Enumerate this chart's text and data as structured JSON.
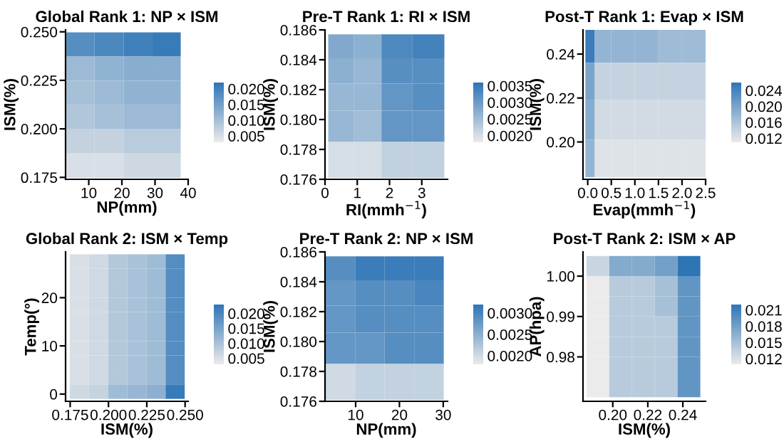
{
  "chart_data": [
    {
      "type": "heatmap",
      "title": "Global Rank 1: NP × ISM",
      "xlabel": "NP(mm)",
      "ylabel": "ISM(%)",
      "colors": [
        "#ebebeb",
        "#2e75b6"
      ],
      "x": [
        7.5,
        16,
        25,
        33.5
      ],
      "y": [
        0.2435,
        0.231,
        0.2185,
        0.206,
        0.1935,
        0.181
      ],
      "cells": [
        [
          0.018,
          0.019,
          0.02,
          0.021
        ],
        [
          0.011,
          0.012,
          0.013,
          0.013
        ],
        [
          0.01,
          0.011,
          0.012,
          0.012
        ],
        [
          0.009,
          0.01,
          0.011,
          0.011
        ],
        [
          0.007,
          0.007,
          0.008,
          0.008
        ],
        [
          0.005,
          0.005,
          0.006,
          0.006
        ]
      ],
      "xlim": [
        3,
        40
      ],
      "xticks": [
        10,
        20,
        30,
        40
      ],
      "ylim": [
        0.174,
        0.251
      ],
      "yticks": [
        {
          "value": 0.175,
          "label": "0.175"
        },
        {
          "value": 0.2,
          "label": "0.200"
        },
        {
          "value": 0.225,
          "label": "0.225"
        },
        {
          "value": 0.25,
          "label": "0.250"
        }
      ],
      "clim": [
        0.003,
        0.022
      ],
      "cticks": [
        {
          "value": 0.005,
          "label": "0.005"
        },
        {
          "value": 0.01,
          "label": "0.010"
        },
        {
          "value": 0.015,
          "label": "0.015"
        },
        {
          "value": 0.02,
          "label": "0.020"
        }
      ]
    },
    {
      "type": "heatmap",
      "title": "Pre-T Rank 1: RI × ISM",
      "xlabel": "RI(mmh$^{−1}$)",
      "ylabel": "ISM(%)",
      "colors": [
        "#ebebeb",
        "#2e75b6"
      ],
      "x": [
        0.5,
        1.3,
        2.2,
        3.2
      ],
      "y": [
        0.1849,
        0.1833,
        0.1815,
        0.1797,
        0.1773
      ],
      "cells": [
        [
          0.0028,
          0.0027,
          0.0033,
          0.0034
        ],
        [
          0.0027,
          0.0026,
          0.0032,
          0.0032
        ],
        [
          0.0026,
          0.0026,
          0.0031,
          0.0032
        ],
        [
          0.0026,
          0.0025,
          0.0031,
          0.0031
        ],
        [
          0.002,
          0.002,
          0.0022,
          0.0022
        ]
      ],
      "xlim": [
        0,
        3.8
      ],
      "xticks": [
        0,
        1,
        2,
        3
      ],
      "ylim": [
        0.176,
        0.186
      ],
      "yticks": [
        {
          "value": 0.176,
          "label": "0.176"
        },
        {
          "value": 0.178,
          "label": "0.178"
        },
        {
          "value": 0.18,
          "label": "0.180"
        },
        {
          "value": 0.182,
          "label": "0.182"
        },
        {
          "value": 0.184,
          "label": "0.184"
        },
        {
          "value": 0.186,
          "label": "0.186"
        }
      ],
      "clim": [
        0.0018,
        0.0036
      ],
      "cticks": [
        {
          "value": 0.002,
          "label": "0.0020"
        },
        {
          "value": 0.0025,
          "label": "0.0025"
        },
        {
          "value": 0.003,
          "label": "0.0030"
        },
        {
          "value": 0.0035,
          "label": "0.0035"
        }
      ]
    },
    {
      "type": "heatmap",
      "title": "Post-T Rank 1: Evap × ISM",
      "xlabel": "Evap(mmh$^{−1}$)",
      "ylabel": "ISM(%)",
      "colors": [
        "#ebebeb",
        "#2e75b6"
      ],
      "x": [
        0.05,
        0.25,
        0.75,
        1.25,
        1.75,
        2.25
      ],
      "y": [
        0.2435,
        0.2285,
        0.2095,
        0.1925
      ],
      "cells": [
        [
          0.025,
          0.018,
          0.018,
          0.018,
          0.017,
          0.017
        ],
        [
          0.02,
          0.014,
          0.014,
          0.014,
          0.014,
          0.014
        ],
        [
          0.019,
          0.013,
          0.013,
          0.013,
          0.013,
          0.013
        ],
        [
          0.018,
          0.012,
          0.012,
          0.012,
          0.012,
          0.012
        ]
      ],
      "xlim": [
        -0.1,
        2.5
      ],
      "xticks": [
        {
          "value": 0,
          "label": "0.0"
        },
        0.5,
        {
          "value": 1,
          "label": "1.0"
        },
        1.5,
        {
          "value": 2,
          "label": "2.0"
        },
        2.5
      ],
      "ylim": [
        0.183,
        0.251
      ],
      "yticks": [
        {
          "value": 0.2,
          "label": "0.20"
        },
        0.22,
        0.24
      ],
      "clim": [
        0.011,
        0.026
      ],
      "cticks": [
        0.012,
        0.016,
        {
          "value": 0.02,
          "label": "0.020"
        },
        0.024
      ]
    },
    {
      "type": "heatmap",
      "title": "Global Rank 2: ISM × Temp",
      "xlabel": "ISM(%)",
      "ylabel": "Temp(°)",
      "colors": [
        "#ebebeb",
        "#2e75b6"
      ],
      "x": [
        0.181,
        0.1935,
        0.206,
        0.2185,
        0.231,
        0.2435
      ],
      "y": [
        27.5,
        24.5,
        21.5,
        18.5,
        15.5,
        12.5,
        9.5,
        6.5,
        3.5,
        0.5
      ],
      "cells": [
        [
          0.005,
          0.006,
          0.009,
          0.01,
          0.011,
          0.019
        ],
        [
          0.005,
          0.006,
          0.009,
          0.01,
          0.011,
          0.019
        ],
        [
          0.005,
          0.006,
          0.009,
          0.01,
          0.011,
          0.019
        ],
        [
          0.005,
          0.006,
          0.009,
          0.01,
          0.011,
          0.019
        ],
        [
          0.005,
          0.006,
          0.009,
          0.01,
          0.011,
          0.019
        ],
        [
          0.005,
          0.006,
          0.009,
          0.01,
          0.011,
          0.019
        ],
        [
          0.005,
          0.006,
          0.009,
          0.01,
          0.011,
          0.019
        ],
        [
          0.005,
          0.006,
          0.009,
          0.01,
          0.011,
          0.019
        ],
        [
          0.005,
          0.006,
          0.009,
          0.01,
          0.011,
          0.019
        ],
        [
          0.006,
          0.007,
          0.011,
          0.012,
          0.013,
          0.022
        ]
      ],
      "xlim": [
        0.172,
        0.252
      ],
      "xticks": [
        {
          "value": 0.175,
          "label": "0.175"
        },
        {
          "value": 0.2,
          "label": "0.200"
        },
        {
          "value": 0.225,
          "label": "0.225"
        },
        {
          "value": 0.25,
          "label": "0.250"
        }
      ],
      "ylim": [
        -1.5,
        29.5
      ],
      "yticks": [
        0,
        10,
        20
      ],
      "clim": [
        0.003,
        0.023
      ],
      "cticks": [
        {
          "value": 0.005,
          "label": "0.005"
        },
        {
          "value": 0.01,
          "label": "0.010"
        },
        {
          "value": 0.015,
          "label": "0.015"
        },
        {
          "value": 0.02,
          "label": "0.020"
        }
      ]
    },
    {
      "type": "heatmap",
      "title": "Pre-T Rank 2: NP × ISM",
      "xlabel": "NP(mm)",
      "ylabel": "ISM(%)",
      "colors": [
        "#ebebeb",
        "#2e75b6"
      ],
      "x": [
        6.5,
        13.25,
        20,
        26.75
      ],
      "y": [
        0.1849,
        0.1833,
        0.1815,
        0.1797,
        0.1773
      ],
      "cells": [
        [
          0.0029,
          0.0031,
          0.0031,
          0.0031
        ],
        [
          0.0028,
          0.0029,
          0.0029,
          0.003
        ],
        [
          0.0028,
          0.0029,
          0.0029,
          0.0029
        ],
        [
          0.0028,
          0.0028,
          0.0029,
          0.0029
        ],
        [
          0.002,
          0.0021,
          0.0021,
          0.0021
        ]
      ],
      "xlim": [
        3,
        31
      ],
      "xticks": [
        10,
        20,
        30
      ],
      "ylim": [
        0.176,
        0.186
      ],
      "yticks": [
        {
          "value": 0.176,
          "label": "0.176"
        },
        {
          "value": 0.178,
          "label": "0.178"
        },
        {
          "value": 0.18,
          "label": "0.180"
        },
        {
          "value": 0.182,
          "label": "0.182"
        },
        {
          "value": 0.184,
          "label": "0.184"
        },
        {
          "value": 0.186,
          "label": "0.186"
        }
      ],
      "clim": [
        0.0018,
        0.0032
      ],
      "cticks": [
        {
          "value": 0.002,
          "label": "0.0020"
        },
        {
          "value": 0.0025,
          "label": "0.0025"
        },
        {
          "value": 0.003,
          "label": "0.0030"
        }
      ]
    },
    {
      "type": "heatmap",
      "title": "Post-T Rank 2: ISM × AP",
      "xlabel": "ISM(%)",
      "ylabel": "AP(hpa)",
      "colors": [
        "#ebebeb",
        "#2e75b6"
      ],
      "x": [
        0.1915,
        0.2045,
        0.2175,
        0.2305,
        0.2435
      ],
      "y": [
        1.0025,
        0.9975,
        0.9925,
        0.9875,
        0.9825,
        0.9775,
        0.9725
      ],
      "cells": [
        [
          0.013,
          0.017,
          0.017,
          0.018,
          0.022
        ],
        [
          0.011,
          0.014,
          0.014,
          0.015,
          0.019
        ],
        [
          0.011,
          0.014,
          0.014,
          0.015,
          0.019
        ],
        [
          0.011,
          0.014,
          0.014,
          0.014,
          0.019
        ],
        [
          0.011,
          0.014,
          0.014,
          0.014,
          0.019
        ],
        [
          0.011,
          0.014,
          0.014,
          0.014,
          0.019
        ],
        [
          0.011,
          0.014,
          0.014,
          0.014,
          0.019
        ]
      ],
      "xlim": [
        0.183,
        0.253
      ],
      "xticks": [
        {
          "value": 0.2,
          "label": "0.20"
        },
        0.22,
        0.24
      ],
      "ylim": [
        0.969,
        1.006
      ],
      "yticks": [
        0.98,
        0.99,
        {
          "value": 1.0,
          "label": "1.00"
        }
      ],
      "clim": [
        0.011,
        0.022
      ],
      "cticks": [
        0.012,
        0.015,
        0.018,
        0.021
      ]
    }
  ]
}
